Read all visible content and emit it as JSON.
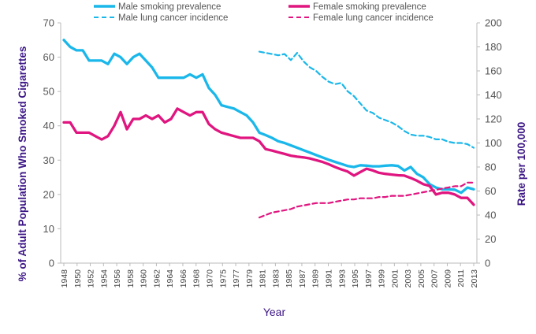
{
  "chart_data": {
    "type": "line",
    "xlabel": "Year",
    "ylabel_left": "% of Adult Population Who Smoked Cigarettes",
    "ylabel_right": "Rate per 100,000",
    "ylim_left": [
      0,
      70
    ],
    "ylim_right": [
      0,
      200
    ],
    "yticks_left": [
      "0",
      "10",
      "20",
      "30",
      "40",
      "50",
      "60",
      "70"
    ],
    "yticks_right": [
      "0",
      "20",
      "40",
      "60",
      "80",
      "100",
      "120",
      "140",
      "160",
      "180",
      "200"
    ],
    "xlim": [
      1948,
      2013
    ],
    "xticks": [
      "1948",
      "1950",
      "1952",
      "1954",
      "1956",
      "1958",
      "1960",
      "1962",
      "1964",
      "1966",
      "1968",
      "1970",
      "1975",
      "1977",
      "1979",
      "1981",
      "1983",
      "1985",
      "1987",
      "1989",
      "1991",
      "1993",
      "1995",
      "1997",
      "1999",
      "2001",
      "2003",
      "2005",
      "2007",
      "2009",
      "2011",
      "2013"
    ],
    "colors": {
      "male": "#1ab7ea",
      "female": "#e0157f",
      "axis_title": "#3b1585"
    },
    "series": [
      {
        "name": "Male smoking prevalence",
        "axis": "left",
        "style": "solid",
        "color": "#1ab7ea",
        "x": [
          1948,
          1949,
          1950,
          1951,
          1952,
          1953,
          1954,
          1955,
          1956,
          1957,
          1958,
          1959,
          1960,
          1961,
          1962,
          1963,
          1964,
          1965,
          1966,
          1967,
          1968,
          1969,
          1970,
          1971,
          1972,
          1973,
          1974,
          1975,
          1976,
          1977,
          1978,
          1979,
          1980,
          1981,
          1982,
          1983,
          1984,
          1985,
          1986,
          1987,
          1988,
          1989,
          1990,
          1991,
          1992,
          1993,
          1994,
          1995,
          1996,
          1997,
          1998,
          1999,
          2000,
          2001,
          2002,
          2003,
          2004,
          2005,
          2006,
          2007,
          2008,
          2009,
          2010,
          2011,
          2012,
          2013
        ],
        "values": [
          65,
          63,
          62,
          62,
          59,
          59,
          59,
          58,
          61,
          60,
          58,
          60,
          61,
          59,
          57,
          54,
          54,
          54,
          54,
          54,
          55,
          54,
          55,
          51,
          49,
          46,
          45.5,
          45,
          44,
          43,
          41,
          38,
          37.3,
          36.5,
          35.5,
          35,
          34.3,
          33.6,
          32.9,
          32.2,
          31.5,
          30.8,
          30.1,
          29.5,
          28.9,
          28.3,
          28,
          28.5,
          28.4,
          28.2,
          28.2,
          28.4,
          28.5,
          28.3,
          27,
          28,
          26,
          25,
          23,
          22,
          21.5,
          21.5,
          21.4,
          20.5,
          22,
          21.5
        ]
      },
      {
        "name": "Female smoking prevalence",
        "axis": "left",
        "style": "solid",
        "color": "#e0157f",
        "x": [
          1948,
          1949,
          1950,
          1951,
          1952,
          1953,
          1954,
          1955,
          1956,
          1957,
          1958,
          1959,
          1960,
          1961,
          1962,
          1963,
          1964,
          1965,
          1966,
          1967,
          1968,
          1969,
          1970,
          1971,
          1972,
          1973,
          1974,
          1975,
          1976,
          1977,
          1978,
          1979,
          1980,
          1981,
          1982,
          1983,
          1984,
          1985,
          1986,
          1987,
          1988,
          1989,
          1990,
          1991,
          1992,
          1993,
          1994,
          1995,
          1996,
          1997,
          1998,
          1999,
          2000,
          2001,
          2002,
          2003,
          2004,
          2005,
          2006,
          2007,
          2008,
          2009,
          2010,
          2011,
          2012,
          2013
        ],
        "values": [
          41,
          41,
          38,
          38,
          38,
          37,
          36,
          37,
          40,
          44,
          39,
          42,
          42,
          43,
          42,
          43,
          41,
          42,
          45,
          44,
          43,
          44,
          44,
          40.5,
          39,
          38,
          37.5,
          37,
          36.5,
          36.5,
          36.5,
          35.5,
          33.2,
          32.8,
          32.3,
          31.8,
          31.3,
          31,
          30.8,
          30.5,
          30,
          29.5,
          28.8,
          28,
          27.3,
          26.7,
          25.5,
          26.5,
          27.5,
          27,
          26.3,
          26,
          25.8,
          25.6,
          25.5,
          24.8,
          24,
          23,
          22.5,
          20,
          20.5,
          20.5,
          20,
          19,
          19,
          17
        ]
      },
      {
        "name": "Male lung cancer incidence",
        "axis": "right",
        "style": "dashed",
        "color": "#1ab7ea",
        "x": [
          1979,
          1980,
          1981,
          1982,
          1983,
          1984,
          1985,
          1986,
          1987,
          1988,
          1989,
          1990,
          1991,
          1992,
          1993,
          1994,
          1995,
          1996,
          1997,
          1998,
          1999,
          2000,
          2001,
          2002,
          2003,
          2004,
          2005,
          2006,
          2007,
          2008,
          2009,
          2010,
          2011,
          2012,
          2013
        ],
        "values": [
          176,
          175,
          174,
          173,
          174,
          169,
          175,
          168,
          163,
          160,
          155,
          151,
          149,
          150,
          143,
          139,
          133,
          127,
          125,
          121,
          119,
          117,
          114,
          110,
          107,
          106,
          106,
          105,
          103,
          103,
          101,
          100,
          100,
          99,
          96
        ]
      },
      {
        "name": "Female lung cancer incidence",
        "axis": "right",
        "style": "dashed",
        "color": "#e0157f",
        "x": [
          1979,
          1980,
          1981,
          1982,
          1983,
          1984,
          1985,
          1986,
          1987,
          1988,
          1989,
          1990,
          1991,
          1992,
          1993,
          1994,
          1995,
          1996,
          1997,
          1998,
          1999,
          2000,
          2001,
          2002,
          2003,
          2004,
          2005,
          2006,
          2007,
          2008,
          2009,
          2010,
          2011,
          2012,
          2013
        ],
        "values": [
          38,
          40,
          42,
          43,
          44,
          45,
          47,
          48,
          49,
          50,
          50,
          50,
          51,
          52,
          53,
          53,
          54,
          54,
          54,
          55,
          55,
          56,
          56,
          56,
          57,
          58,
          59,
          60,
          61,
          62,
          63,
          64,
          64,
          67,
          67
        ]
      }
    ]
  }
}
